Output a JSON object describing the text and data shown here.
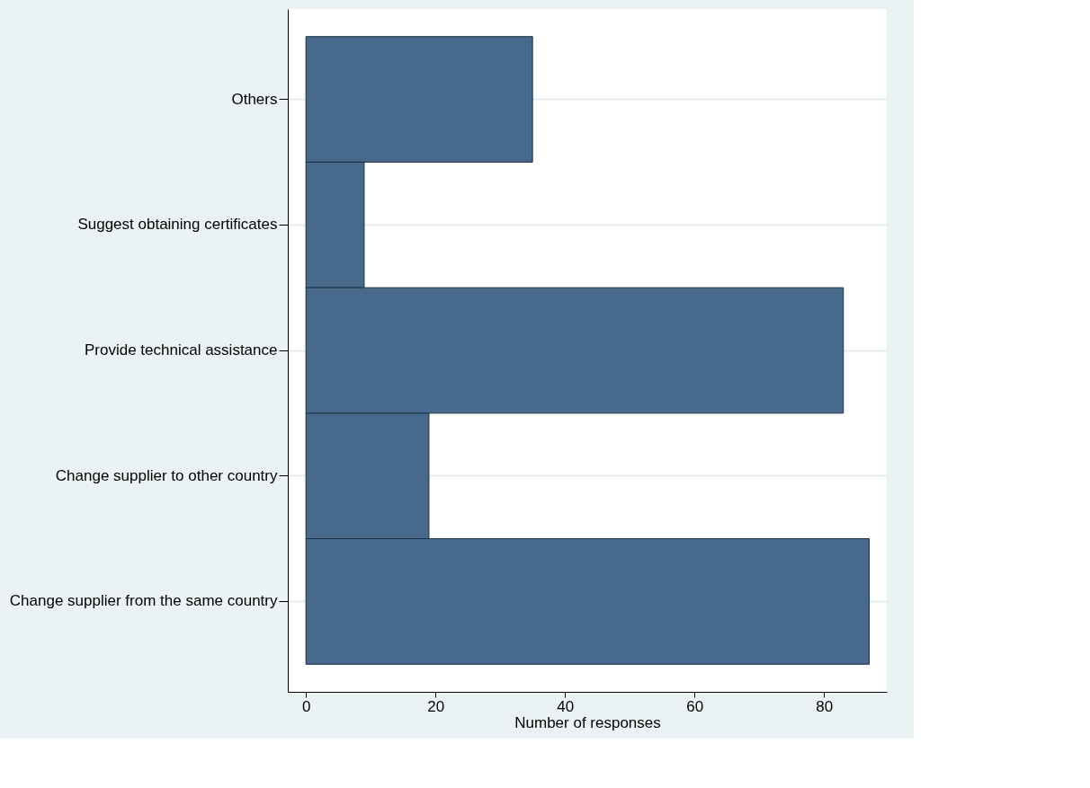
{
  "chart_data": {
    "type": "bar",
    "orientation": "horizontal",
    "xlabel": "Number of responses",
    "categories": [
      "Others",
      "Suggest obtaining certificates",
      "Provide technical assistance",
      "Change supplier to other country",
      "Change supplier from the same country"
    ],
    "values": [
      35,
      9,
      83,
      19,
      87
    ],
    "color": "#476a8c",
    "xlim": [
      -2.8,
      89.7
    ],
    "xticks": [
      0,
      20,
      40,
      60,
      80
    ],
    "grid": "y"
  }
}
